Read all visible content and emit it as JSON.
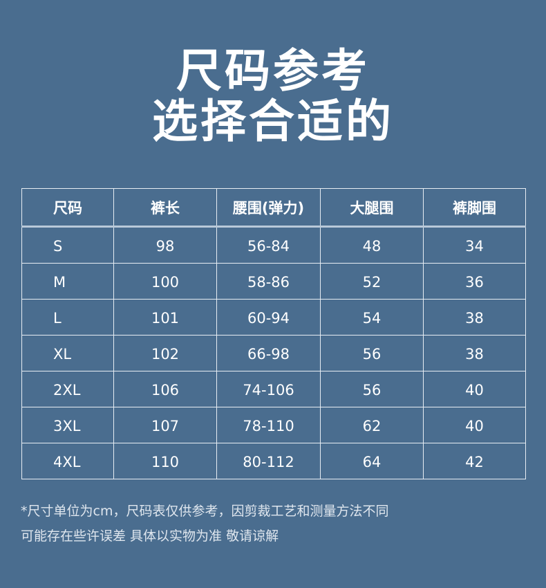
{
  "title": {
    "line1": "尺码参考",
    "line2": "选择合适的"
  },
  "table": {
    "headers": [
      "尺码",
      "裤长",
      "腰围(弹力)",
      "大腿围",
      "裤脚围"
    ],
    "rows": [
      [
        "S",
        "98",
        "56-84",
        "48",
        "34"
      ],
      [
        "M",
        "100",
        "58-86",
        "52",
        "36"
      ],
      [
        "L",
        "101",
        "60-94",
        "54",
        "38"
      ],
      [
        "XL",
        "102",
        "66-98",
        "56",
        "38"
      ],
      [
        "2XL",
        "106",
        "74-106",
        "56",
        "40"
      ],
      [
        "3XL",
        "107",
        "78-110",
        "62",
        "40"
      ],
      [
        "4XL",
        "110",
        "80-112",
        "64",
        "42"
      ]
    ]
  },
  "notes": {
    "line1": "*尺寸单位为cm，尺码表仅供参考，因剪裁工艺和测量方法不同",
    "line2": "可能存在些许误差 具体以实物为准 敬请谅解"
  },
  "colors": {
    "background": "#4a6d8f",
    "text": "#ffffff"
  }
}
